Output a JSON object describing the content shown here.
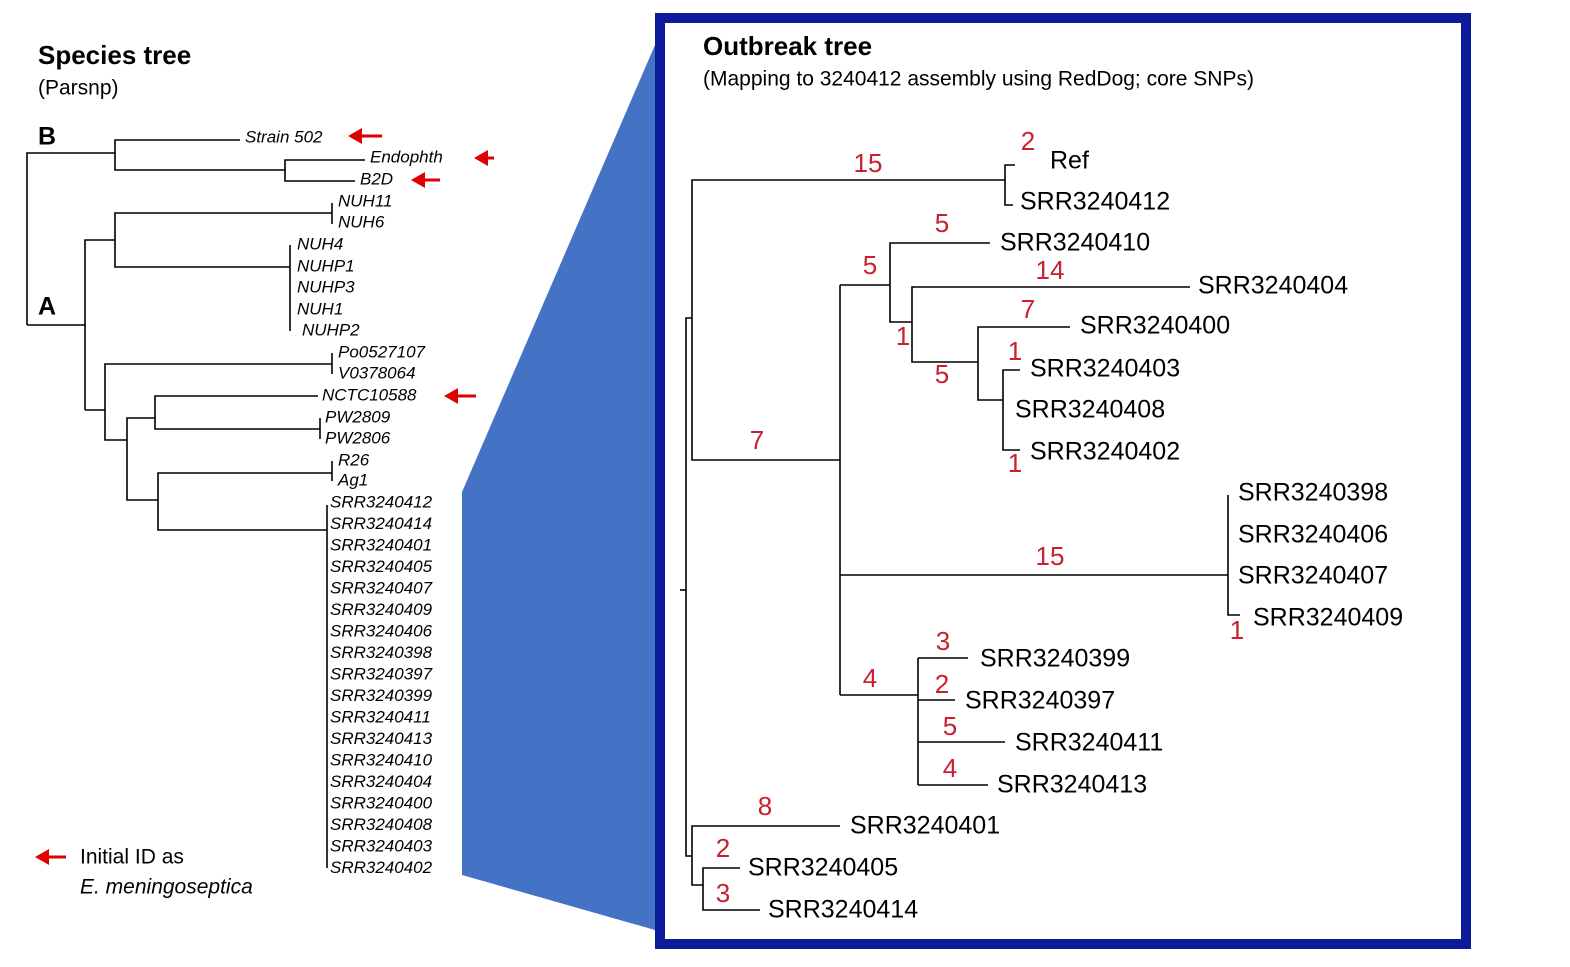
{
  "species_tree": {
    "title": "Species tree",
    "subtitle": "(Parsnp)",
    "clade_labels": [
      "B",
      "A"
    ],
    "leaves": [
      "Strain 502",
      "Endophth",
      "B2D",
      "NUH11",
      "NUH6",
      "NUH4",
      "NUHP1",
      "NUHP3",
      "NUH1",
      "NUHP2",
      "Po0527107",
      "V0378064",
      "NCTC10588",
      "PW2809",
      "PW2806",
      "R26",
      "Ag1",
      "SRR3240412",
      "SRR3240414",
      "SRR3240401",
      "SRR3240405",
      "SRR3240407",
      "SRR3240409",
      "SRR3240406",
      "SRR3240398",
      "SRR3240397",
      "SRR3240399",
      "SRR3240411",
      "SRR3240413",
      "SRR3240410",
      "SRR3240404",
      "SRR3240400",
      "SRR3240408",
      "SRR3240403",
      "SRR3240402"
    ],
    "legend": [
      "Initial ID as",
      "E. meningoseptica"
    ]
  },
  "outbreak_tree": {
    "title": "Outbreak tree",
    "subtitle": "(Mapping to 3240412 assembly using RedDog; core SNPs)",
    "leaves": [
      "Ref",
      "SRR3240412",
      "SRR3240410",
      "SRR3240404",
      "SRR3240400",
      "SRR3240403",
      "SRR3240408",
      "SRR3240402",
      "SRR3240398",
      "SRR3240406",
      "SRR3240407",
      "SRR3240409",
      "SRR3240399",
      "SRR3240397",
      "SRR3240411",
      "SRR3240413",
      "SRR3240401",
      "SRR3240405",
      "SRR3240414"
    ],
    "branch_labels": [
      "15",
      "2",
      "5",
      "5",
      "14",
      "7",
      "1",
      "1",
      "5",
      "1",
      "7",
      "15",
      "1",
      "3",
      "4",
      "2",
      "5",
      "4",
      "8",
      "2",
      "3"
    ]
  }
}
